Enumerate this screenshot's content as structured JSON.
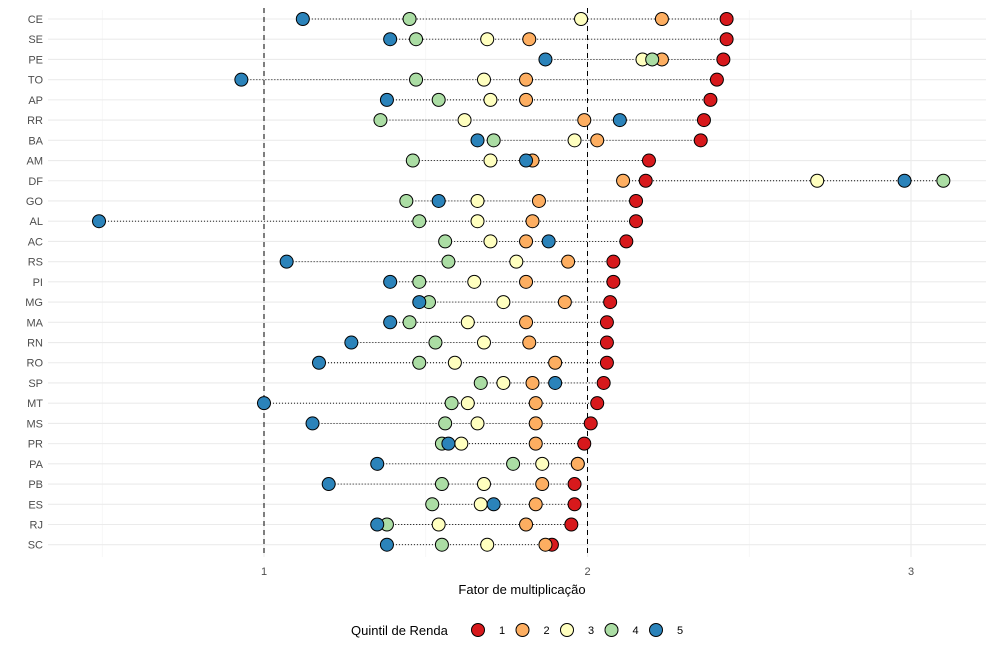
{
  "chart_data": {
    "type": "scatter",
    "xlabel": "Fator de multiplicação",
    "ylabel": "",
    "xlim": [
      0.4,
      3.25
    ],
    "x_ticks": [
      1,
      2,
      3
    ],
    "x_tick_labels": [
      "1",
      "2",
      "3"
    ],
    "reference_lines": [
      1,
      2
    ],
    "grid": true,
    "legend": {
      "title": "Quintil de Renda",
      "placement": "bottom",
      "entries": [
        {
          "key": "1",
          "color": "#d7191c"
        },
        {
          "key": "2",
          "color": "#fdae61"
        },
        {
          "key": "3",
          "color": "#ffffbf"
        },
        {
          "key": "4",
          "color": "#abdda4"
        },
        {
          "key": "5",
          "color": "#2b83ba"
        }
      ]
    },
    "categories": [
      "CE",
      "SE",
      "PE",
      "TO",
      "AP",
      "RR",
      "BA",
      "AM",
      "DF",
      "GO",
      "AL",
      "AC",
      "RS",
      "PI",
      "MG",
      "MA",
      "RN",
      "RO",
      "SP",
      "MT",
      "MS",
      "PR",
      "PA",
      "PB",
      "ES",
      "RJ",
      "SC"
    ],
    "series": [
      {
        "name": "1",
        "color": "#d7191c",
        "values": [
          2.43,
          2.43,
          2.42,
          2.4,
          2.38,
          2.36,
          2.35,
          2.19,
          2.18,
          2.15,
          2.15,
          2.12,
          2.08,
          2.08,
          2.07,
          2.06,
          2.06,
          2.06,
          2.05,
          2.03,
          2.01,
          1.99,
          1.97,
          1.96,
          1.96,
          1.95,
          1.89
        ]
      },
      {
        "name": "2",
        "color": "#fdae61",
        "values": [
          2.23,
          1.82,
          2.23,
          1.81,
          1.81,
          1.99,
          2.03,
          1.83,
          2.11,
          1.85,
          1.83,
          1.81,
          1.94,
          1.81,
          1.93,
          1.81,
          1.82,
          1.9,
          1.83,
          1.84,
          1.84,
          1.84,
          1.97,
          1.86,
          1.84,
          1.81,
          1.87
        ]
      },
      {
        "name": "3",
        "color": "#ffffbf",
        "values": [
          1.98,
          1.69,
          2.17,
          1.68,
          1.7,
          1.62,
          1.96,
          1.7,
          2.71,
          1.66,
          1.66,
          1.7,
          1.78,
          1.65,
          1.74,
          1.63,
          1.68,
          1.59,
          1.74,
          1.63,
          1.66,
          1.61,
          1.86,
          1.68,
          1.67,
          1.54,
          1.69
        ]
      },
      {
        "name": "4",
        "color": "#abdda4",
        "values": [
          1.45,
          1.47,
          2.2,
          1.47,
          1.54,
          1.36,
          1.71,
          1.46,
          3.1,
          1.44,
          1.48,
          1.56,
          1.57,
          1.48,
          1.51,
          1.45,
          1.53,
          1.48,
          1.67,
          1.58,
          1.56,
          1.55,
          1.77,
          1.55,
          1.52,
          1.38,
          1.55
        ]
      },
      {
        "name": "5",
        "color": "#2b83ba",
        "values": [
          1.12,
          1.39,
          1.87,
          0.93,
          1.38,
          2.1,
          1.66,
          1.81,
          2.98,
          1.54,
          0.49,
          1.88,
          1.07,
          1.39,
          1.48,
          1.39,
          1.27,
          1.17,
          1.9,
          1.0,
          1.15,
          1.57,
          1.35,
          1.2,
          1.71,
          1.35,
          1.38
        ]
      }
    ]
  }
}
